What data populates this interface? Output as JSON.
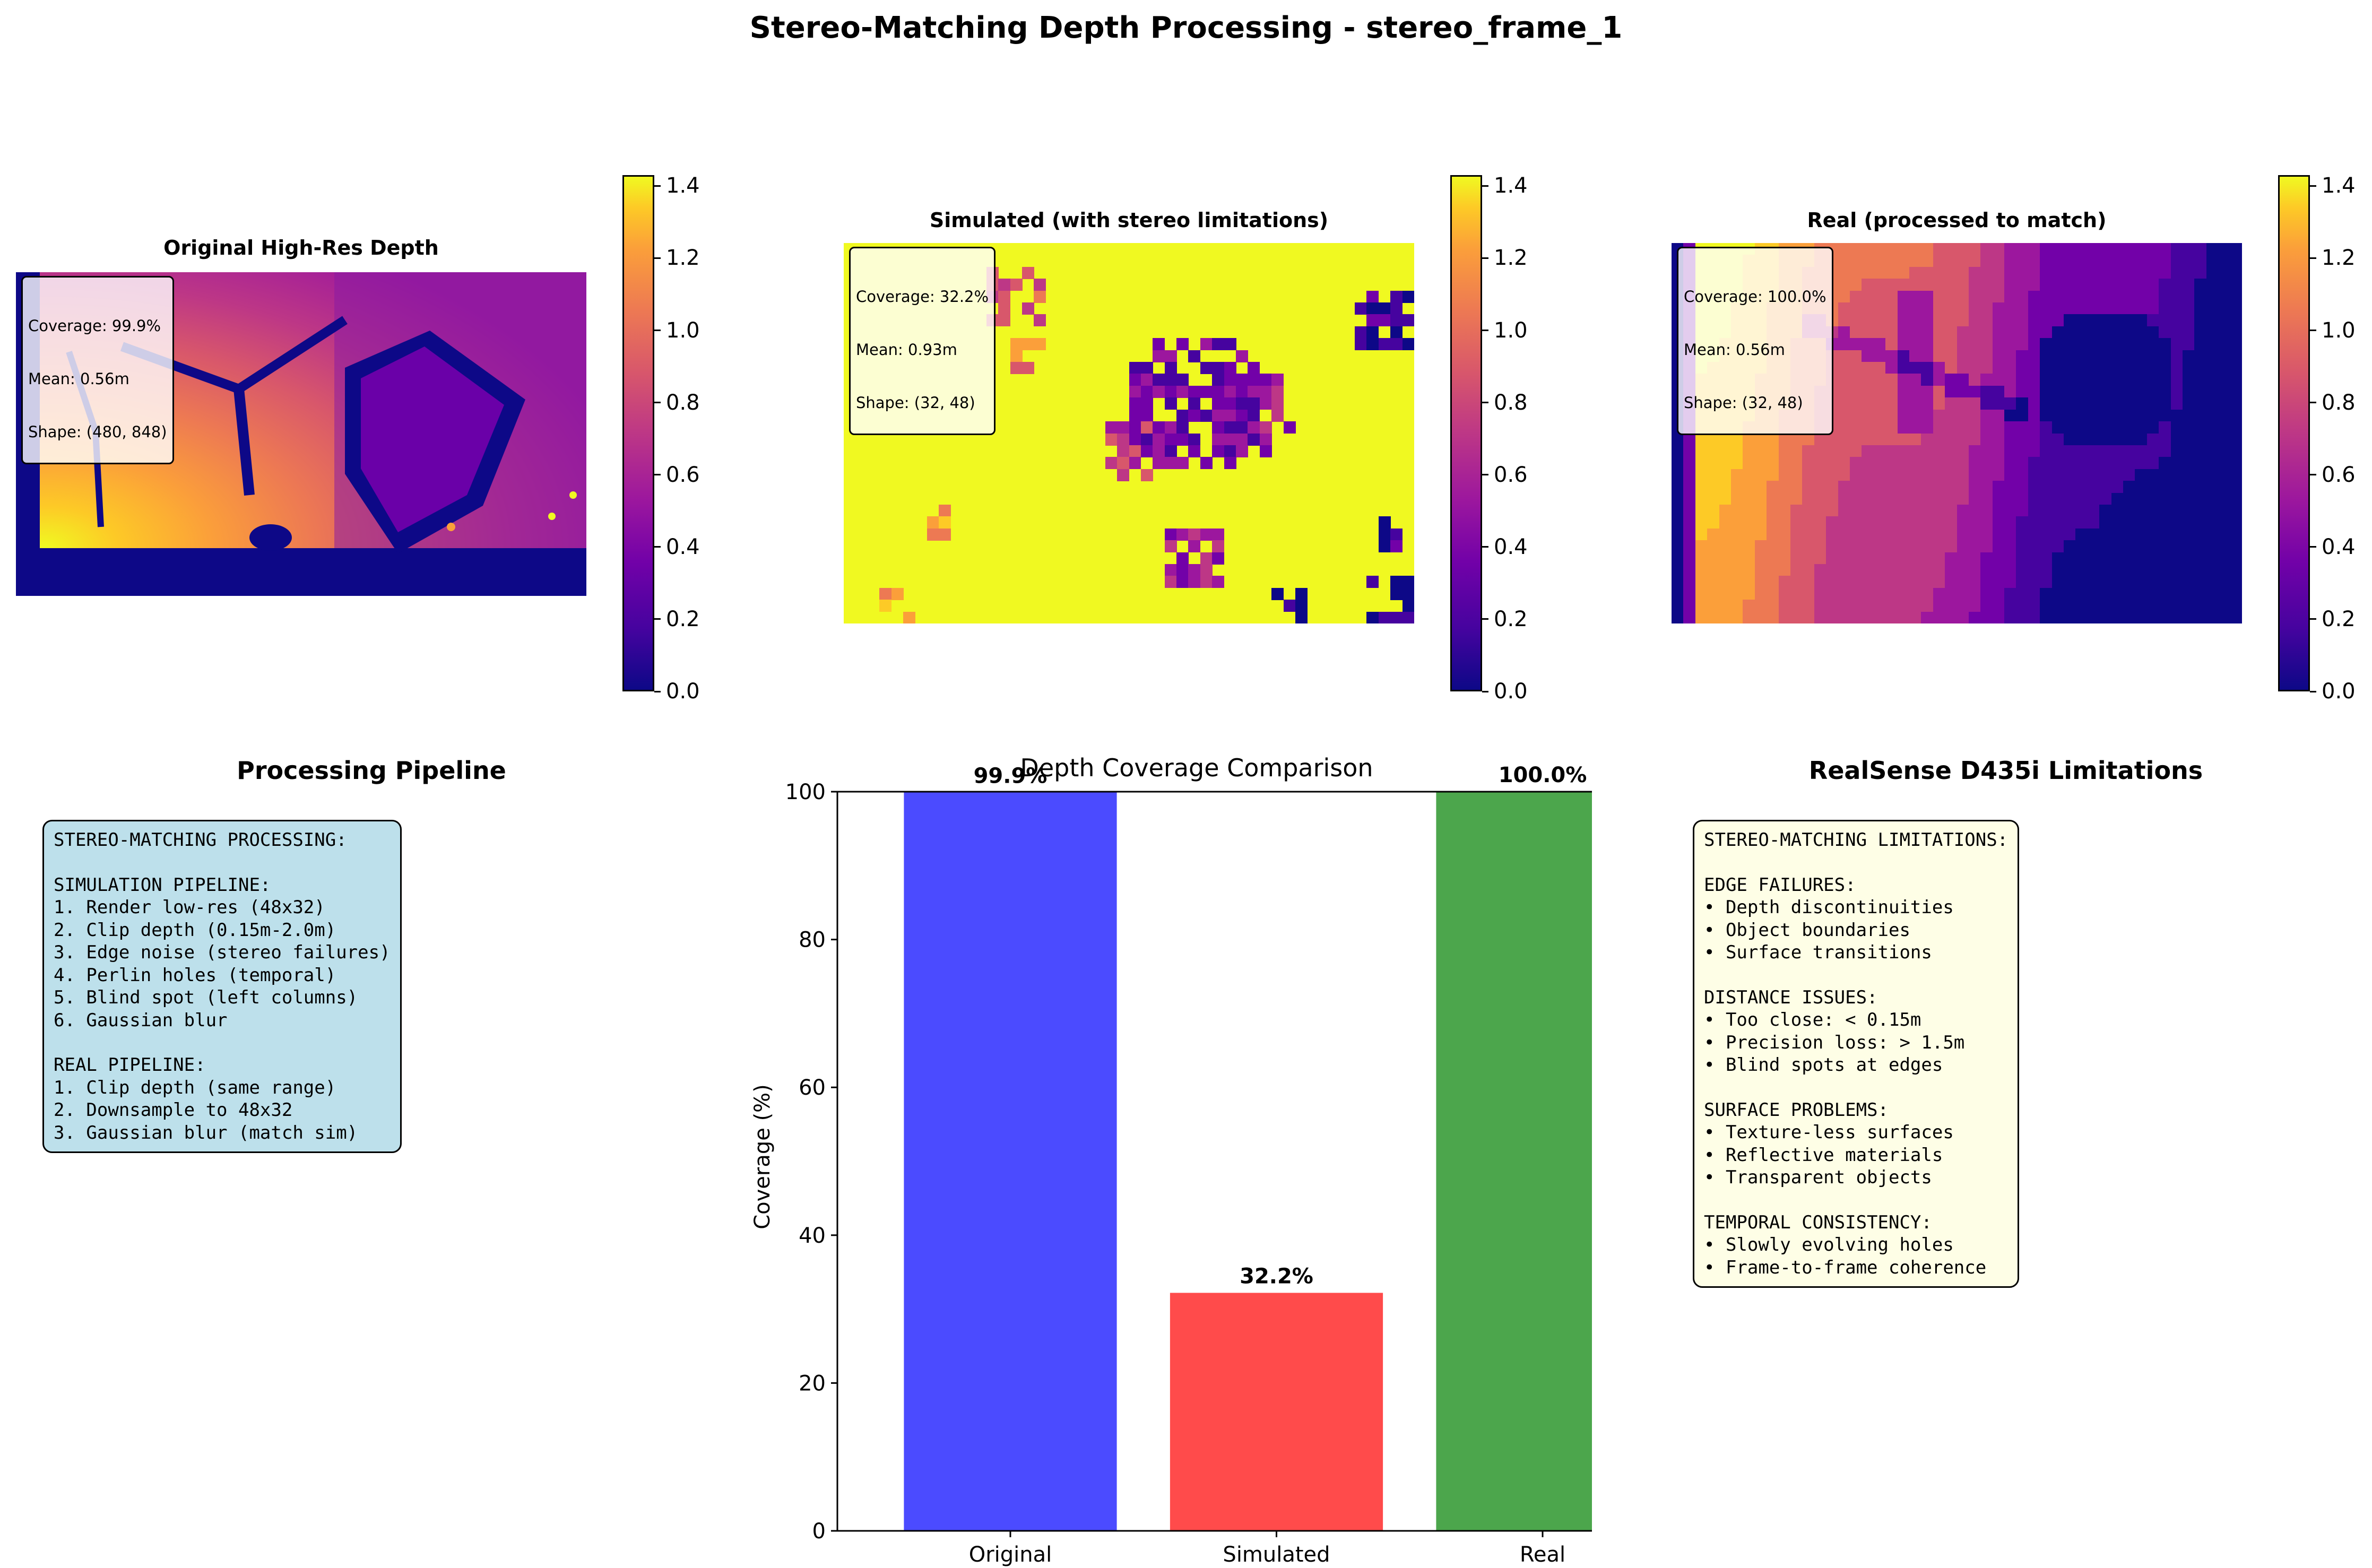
{
  "suptitle": "Stereo-Matching Depth Processing - stereo_frame_1",
  "panels": [
    {
      "title": "Original High-Res Depth",
      "info": [
        "Coverage: 99.9%",
        "Mean: 0.56m",
        "Shape: (480, 848)"
      ]
    },
    {
      "title": "Simulated (with stereo limitations)",
      "info": [
        "Coverage: 32.2%",
        "Mean: 0.93m",
        "Shape: (32, 48)"
      ]
    },
    {
      "title": "Real (processed to match)",
      "info": [
        "Coverage: 100.0%",
        "Mean: 0.56m",
        "Shape: (32, 48)"
      ]
    }
  ],
  "colorbar": {
    "colormap": "plasma",
    "range": [
      0.0,
      1.43
    ],
    "ticks": [
      "0.0",
      "0.2",
      "0.4",
      "0.6",
      "0.8",
      "1.0",
      "1.2",
      "1.4"
    ]
  },
  "pipeline": {
    "title": "Processing Pipeline",
    "background": "#add8e6",
    "lines": [
      "STEREO-MATCHING PROCESSING:",
      "",
      "SIMULATION PIPELINE:",
      "1. Render low-res (48x32)",
      "2. Clip depth (0.15m-2.0m)",
      "3. Edge noise (stereo failures)",
      "4. Perlin holes (temporal)",
      "5. Blind spot (left columns)",
      "6. Gaussian blur",
      "",
      "REAL PIPELINE:",
      "1. Clip depth (same range)",
      "2. Downsample to 48x32",
      "3. Gaussian blur (match sim)"
    ]
  },
  "limitations": {
    "title": "RealSense D435i Limitations",
    "background": "#ffffe0",
    "lines": [
      "STEREO-MATCHING LIMITATIONS:",
      "",
      "EDGE FAILURES:",
      "• Depth discontinuities",
      "• Object boundaries",
      "• Surface transitions",
      "",
      "DISTANCE ISSUES:",
      "• Too close: < 0.15m",
      "• Precision loss: > 1.5m",
      "• Blind spots at edges",
      "",
      "SURFACE PROBLEMS:",
      "• Texture-less surfaces",
      "• Reflective materials",
      "• Transparent objects",
      "",
      "TEMPORAL CONSISTENCY:",
      "• Slowly evolving holes",
      "• Frame-to-frame coherence"
    ]
  },
  "chart_data": {
    "type": "bar",
    "title": "Depth Coverage Comparison",
    "categories": [
      "Original",
      "Simulated",
      "Real"
    ],
    "values": [
      99.9,
      32.2,
      100.0
    ],
    "value_labels": [
      "99.9%",
      "32.2%",
      "100.0%"
    ],
    "colors": [
      "#4b4bff",
      "#ff4b4b",
      "#4ca64c"
    ],
    "ylabel": "Coverage (%)",
    "xlabel": "",
    "ylim": [
      0,
      100
    ],
    "yticks": [
      0,
      20,
      40,
      60,
      80,
      100
    ]
  }
}
